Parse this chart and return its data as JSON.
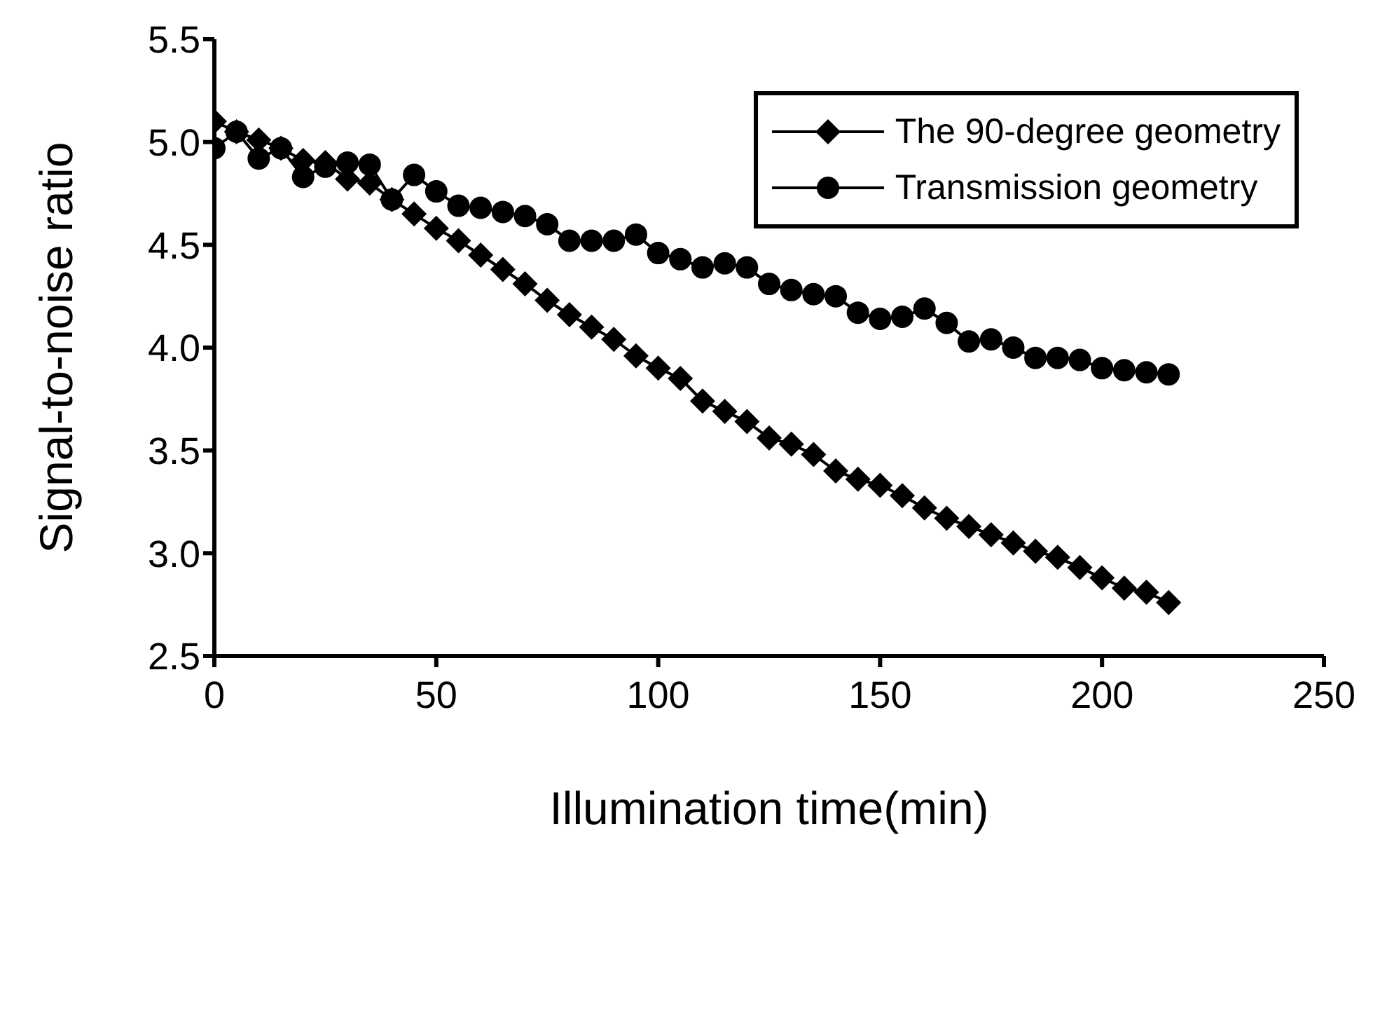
{
  "chart_data": {
    "type": "line",
    "xlabel": "Illumination time(min)",
    "ylabel": "Signal-to-noise ratio",
    "x": [
      0,
      5,
      10,
      15,
      20,
      25,
      30,
      35,
      40,
      45,
      50,
      55,
      60,
      65,
      70,
      75,
      80,
      85,
      90,
      95,
      100,
      105,
      110,
      115,
      120,
      125,
      130,
      135,
      140,
      145,
      150,
      155,
      160,
      165,
      170,
      175,
      180,
      185,
      190,
      195,
      200,
      205,
      210,
      215
    ],
    "series": [
      {
        "name": "The 90-degree geometry",
        "color": "#000000",
        "marker": "diamond",
        "values": [
          5.1,
          5.05,
          5.01,
          4.97,
          4.91,
          4.9,
          4.82,
          4.8,
          4.72,
          4.65,
          4.58,
          4.52,
          4.45,
          4.38,
          4.31,
          4.23,
          4.16,
          4.1,
          4.04,
          3.96,
          3.9,
          3.85,
          3.74,
          3.69,
          3.64,
          3.56,
          3.53,
          3.48,
          3.4,
          3.36,
          3.33,
          3.28,
          3.22,
          3.17,
          3.13,
          3.09,
          3.05,
          3.01,
          2.98,
          2.93,
          2.88,
          2.83,
          2.81,
          2.76
        ]
      },
      {
        "name": "Transmission geometry",
        "color": "#000000",
        "marker": "circle",
        "values": [
          4.97,
          5.05,
          4.92,
          4.97,
          4.83,
          4.88,
          4.9,
          4.89,
          4.72,
          4.84,
          4.76,
          4.69,
          4.68,
          4.66,
          4.64,
          4.6,
          4.52,
          4.52,
          4.52,
          4.55,
          4.46,
          4.43,
          4.39,
          4.41,
          4.39,
          4.31,
          4.28,
          4.26,
          4.25,
          4.17,
          4.14,
          4.15,
          4.19,
          4.12,
          4.03,
          4.04,
          4.0,
          3.95,
          3.95,
          3.94,
          3.9,
          3.89,
          3.88,
          3.87
        ]
      }
    ],
    "xlim": [
      0,
      250
    ],
    "xticks": [
      0,
      50,
      100,
      150,
      200,
      250
    ],
    "ylim": [
      2.5,
      5.5
    ],
    "yticks": [
      {
        "value": 2.5,
        "label": "2.5"
      },
      {
        "value": 3,
        "label": "3.0"
      },
      {
        "value": 3.5,
        "label": "3.5"
      },
      {
        "value": 4,
        "label": "4.0"
      },
      {
        "value": 4.5,
        "label": "4.5"
      },
      {
        "value": 5,
        "label": "5.0"
      },
      {
        "value": 5.5,
        "label": "5.5"
      }
    ],
    "grid": false,
    "legend": "top right",
    "line_style": "solid"
  }
}
